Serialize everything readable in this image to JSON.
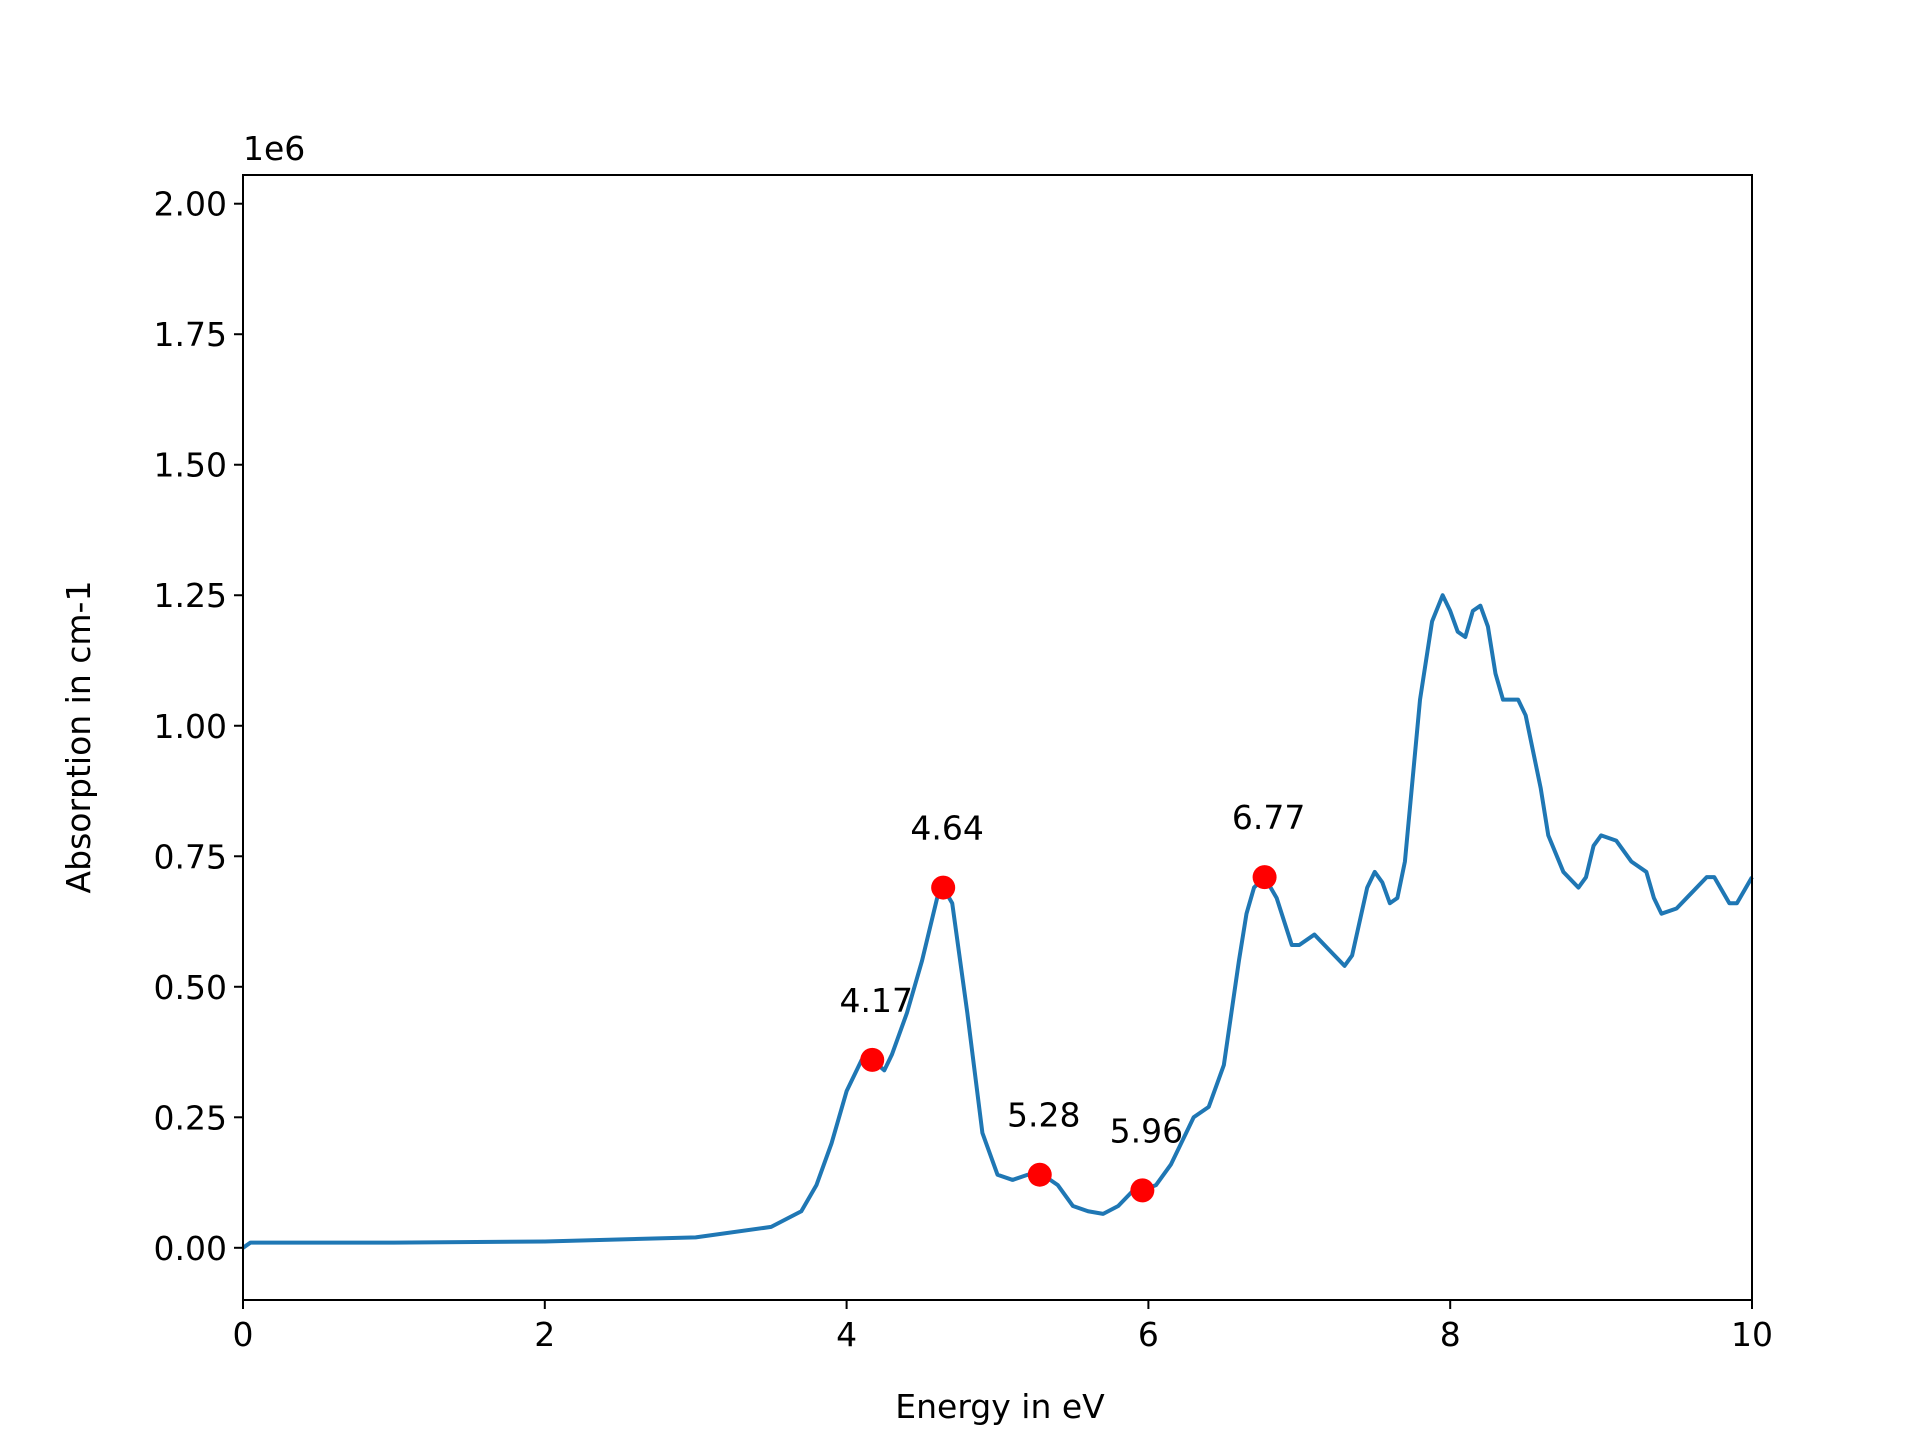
{
  "chart_data": {
    "type": "line",
    "x_label": "Energy in eV",
    "y_label": "Absorption in cm-1",
    "y_offset_label": "1e6",
    "xlim": [
      0,
      10
    ],
    "xticks": [
      0,
      2,
      4,
      6,
      8,
      10
    ],
    "ylim": [
      -0.1,
      2.055
    ],
    "yticks": [
      {
        "value": 0,
        "label": "0.00"
      },
      {
        "value": 0.25,
        "label": "0.25"
      },
      {
        "value": 0.5,
        "label": "0.50"
      },
      {
        "value": 0.75,
        "label": "0.75"
      },
      {
        "value": 1,
        "label": "1.00"
      },
      {
        "value": 1.25,
        "label": "1.25"
      },
      {
        "value": 1.5,
        "label": "1.50"
      },
      {
        "value": 1.75,
        "label": "1.75"
      },
      {
        "value": 2,
        "label": "2.00"
      }
    ],
    "series": [
      {
        "color": "#1f77b4",
        "x": [
          0,
          0.05,
          1,
          2,
          3,
          3.5,
          3.7,
          3.8,
          3.9,
          4.0,
          4.1,
          4.17,
          4.25,
          4.3,
          4.4,
          4.5,
          4.6,
          4.64,
          4.7,
          4.8,
          4.9,
          5.0,
          5.1,
          5.2,
          5.3,
          5.4,
          5.5,
          5.6,
          5.7,
          5.8,
          5.9,
          5.96,
          6.05,
          6.15,
          6.25,
          6.3,
          6.4,
          6.5,
          6.55,
          6.6,
          6.65,
          6.7,
          6.77,
          6.85,
          6.95,
          7.0,
          7.1,
          7.2,
          7.3,
          7.35,
          7.45,
          7.5,
          7.55,
          7.6,
          7.65,
          7.7,
          7.8,
          7.88,
          7.95,
          8.0,
          8.05,
          8.1,
          8.15,
          8.2,
          8.25,
          8.3,
          8.35,
          8.45,
          8.5,
          8.6,
          8.65,
          8.75,
          8.85,
          8.9,
          8.95,
          9.0,
          9.1,
          9.2,
          9.3,
          9.35,
          9.4,
          9.5,
          9.6,
          9.7,
          9.75,
          9.85,
          9.9,
          10.0
        ],
        "values": [
          0.0,
          0.01,
          0.01,
          0.012,
          0.02,
          0.04,
          0.07,
          0.12,
          0.2,
          0.3,
          0.36,
          0.36,
          0.34,
          0.37,
          0.45,
          0.55,
          0.67,
          0.69,
          0.66,
          0.45,
          0.22,
          0.14,
          0.13,
          0.14,
          0.14,
          0.12,
          0.08,
          0.07,
          0.065,
          0.08,
          0.11,
          0.11,
          0.12,
          0.16,
          0.22,
          0.25,
          0.27,
          0.35,
          0.45,
          0.55,
          0.64,
          0.69,
          0.71,
          0.67,
          0.58,
          0.58,
          0.6,
          0.57,
          0.54,
          0.56,
          0.69,
          0.72,
          0.7,
          0.66,
          0.67,
          0.74,
          1.05,
          1.2,
          1.25,
          1.22,
          1.18,
          1.17,
          1.22,
          1.23,
          1.19,
          1.1,
          1.05,
          1.05,
          1.02,
          0.88,
          0.79,
          0.72,
          0.69,
          0.71,
          0.77,
          0.79,
          0.78,
          0.74,
          0.72,
          0.67,
          0.64,
          0.65,
          0.68,
          0.71,
          0.71,
          0.66,
          0.66,
          0.71
        ]
      }
    ],
    "peaks": {
      "color": "#ff0000",
      "x": [
        4.17,
        4.64,
        5.28,
        5.96,
        6.77
      ],
      "values": [
        0.36,
        0.69,
        0.14,
        0.11,
        0.71
      ],
      "annotations": [
        "4.17",
        "4.64",
        "5.28",
        "5.96",
        "6.77"
      ]
    }
  }
}
